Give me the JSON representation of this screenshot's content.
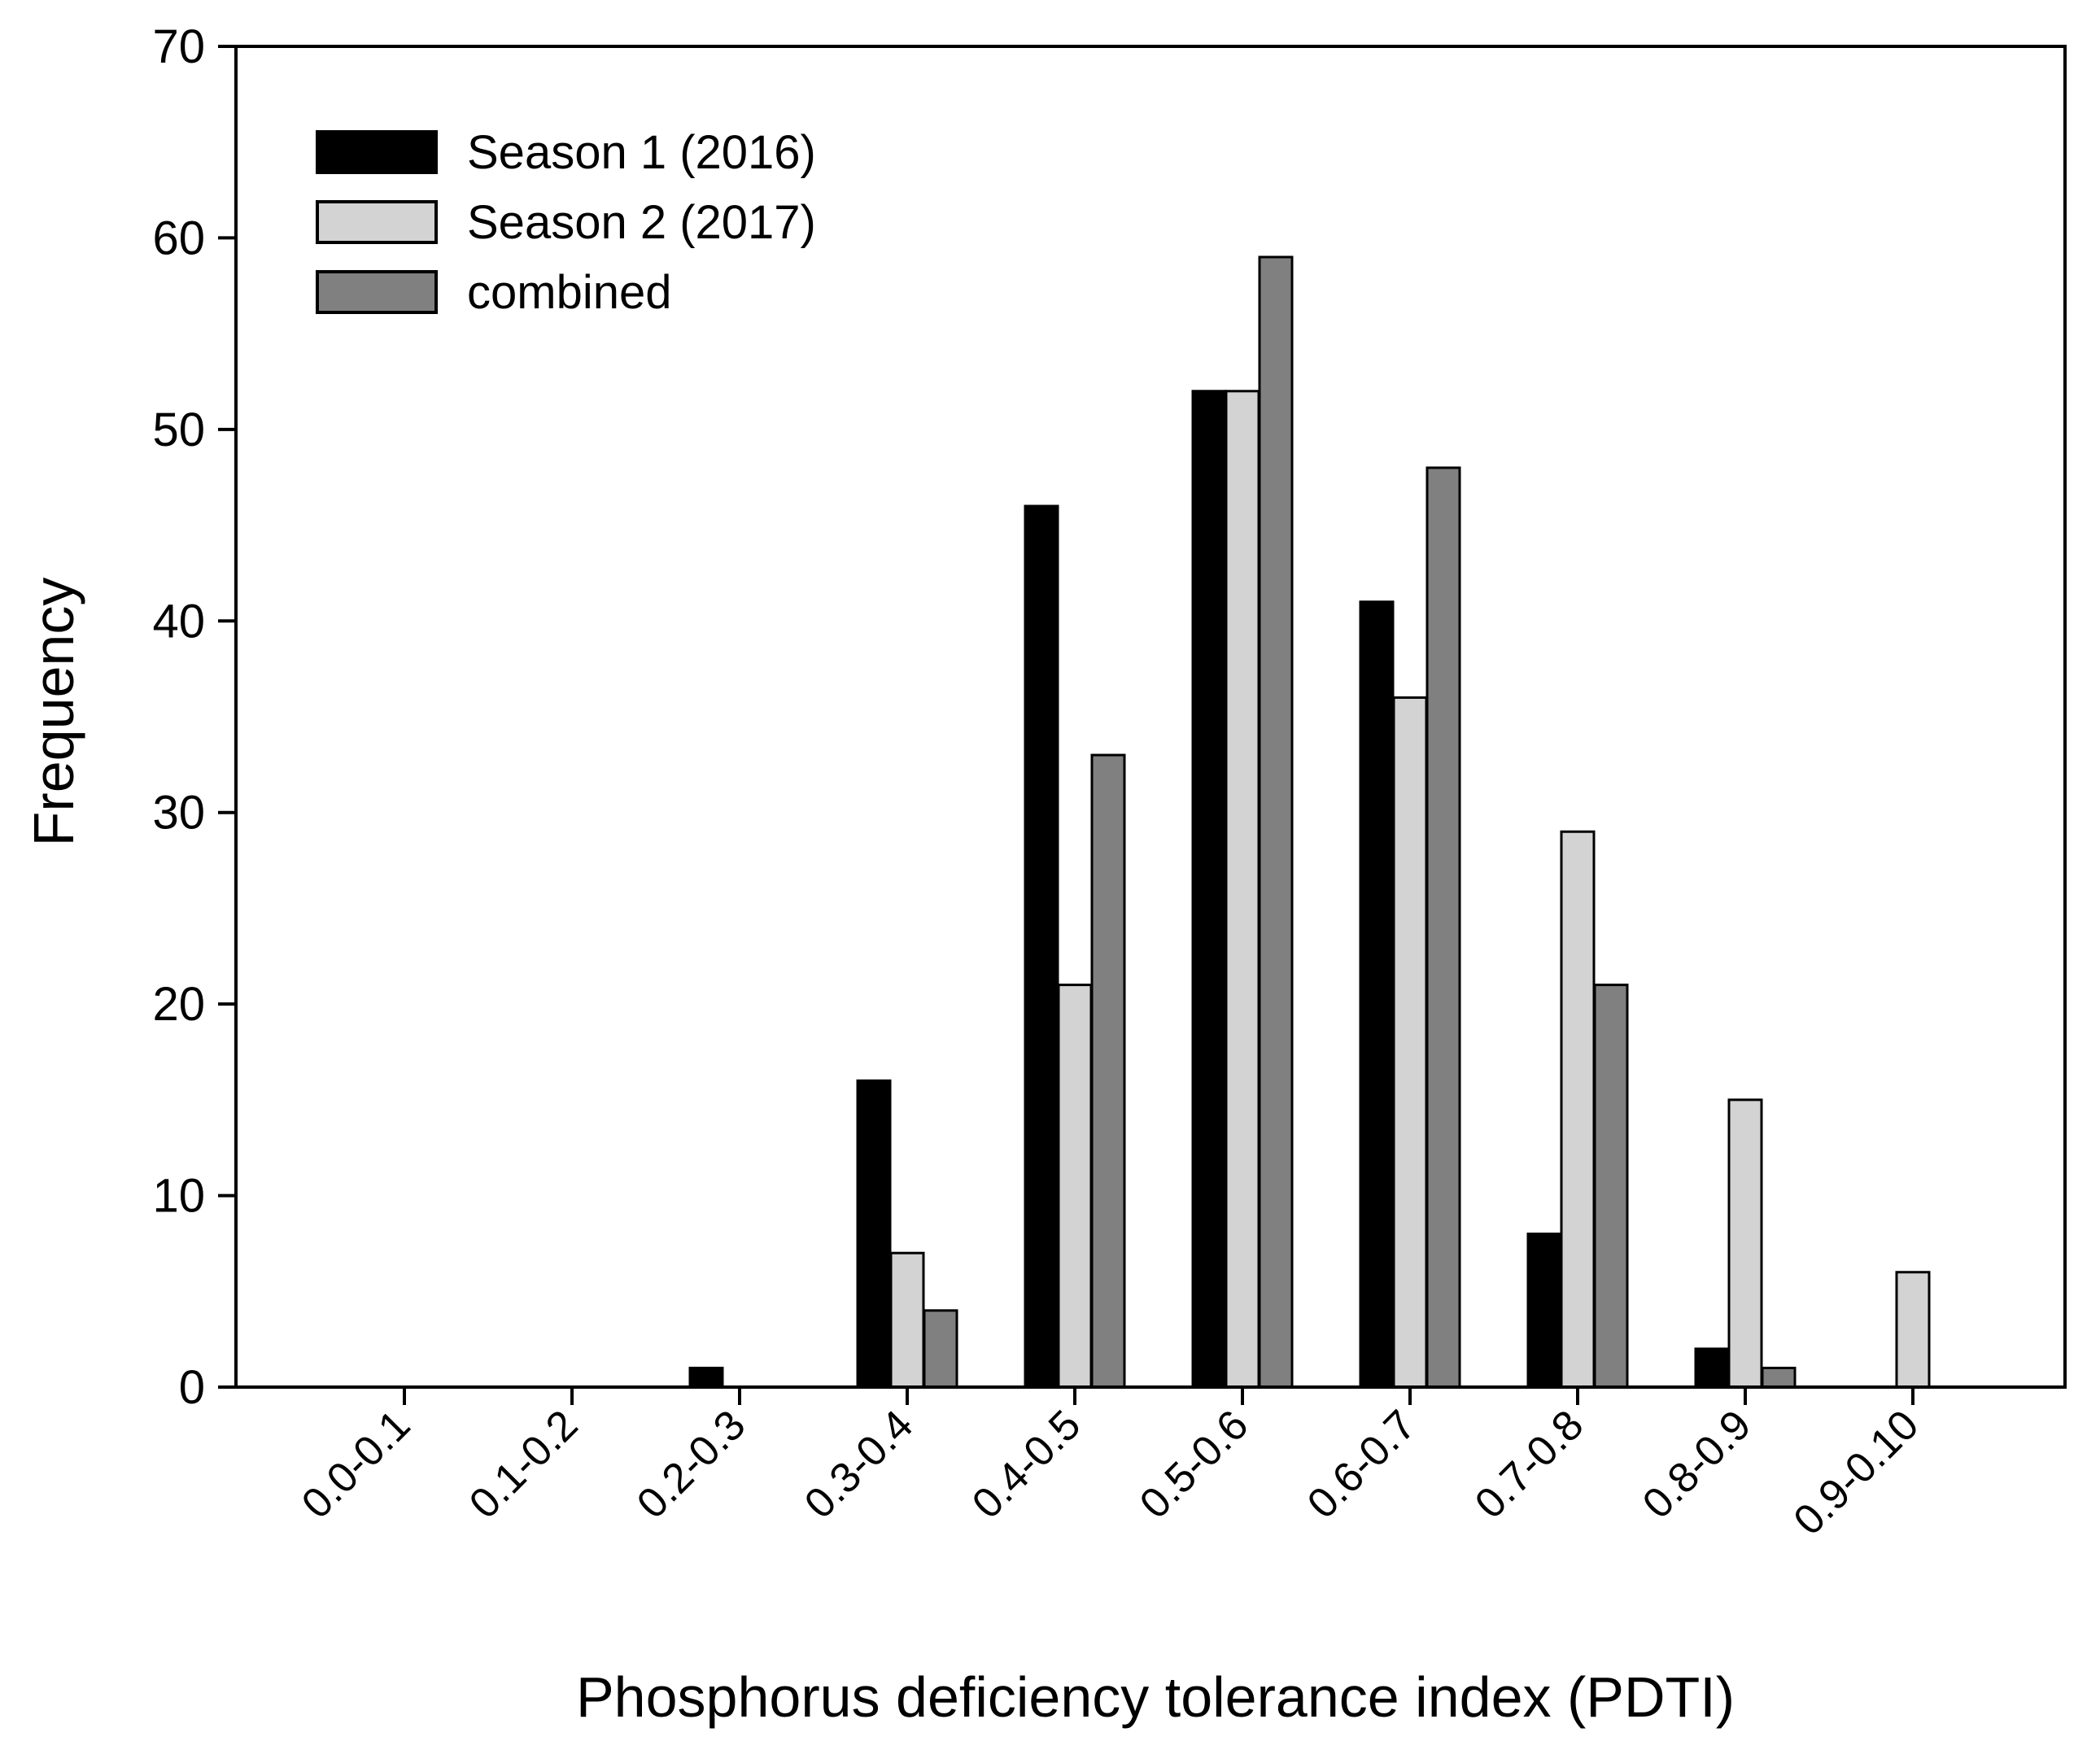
{
  "chart_data": {
    "type": "bar",
    "title": "",
    "xlabel": "Phosphorus deficiency tolerance index (PDTI)",
    "ylabel": "Frequency",
    "ylim": [
      0,
      70
    ],
    "yticks": [
      0,
      10,
      20,
      30,
      40,
      50,
      60,
      70
    ],
    "grid": false,
    "legend_position": "top-left",
    "categories": [
      "0.0-0.1",
      "0.1-0.2",
      "0.2-0.3",
      "0.3-0.4",
      "0.4-0.5",
      "0.5-0.6",
      "0.6-0.7",
      "0.7-0.8",
      "0.8-0.9",
      "0.9-0.10"
    ],
    "series": [
      {
        "name": "Season 1 (2016)",
        "color": "#000000",
        "values": [
          0,
          0,
          1,
          16,
          46,
          52,
          41,
          8,
          2,
          0
        ]
      },
      {
        "name": "Season 2 (2017)",
        "color": "#d3d3d3",
        "values": [
          0,
          0,
          0,
          7,
          21,
          52,
          36,
          29,
          15,
          6
        ]
      },
      {
        "name": "combined",
        "color": "#808080",
        "values": [
          0,
          0,
          0,
          4,
          33,
          59,
          48,
          21,
          1,
          0
        ]
      }
    ]
  }
}
